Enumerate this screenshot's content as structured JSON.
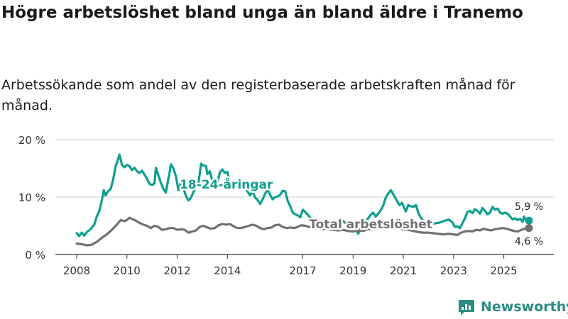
{
  "title": "Högre arbetslöshet bland unga än bland äldre i Tranemo",
  "subtitle": "Arbetssökande som andel av den registerbaserade arbetskraften månad för månad.",
  "brand": {
    "name": "Newsworthy",
    "icon": "newsworthy-logo-icon"
  },
  "colors": {
    "youth": "#0f9e8f",
    "total": "#707070",
    "grid": "#cccccc",
    "axis": "#333333"
  },
  "chart_data": {
    "type": "line",
    "title": "Högre arbetslöshet bland unga än bland äldre i Tranemo",
    "subtitle": "Arbetssökande som andel av den registerbaserade arbetskraften månad för månad.",
    "xlabel": "",
    "ylabel": "",
    "xlim": [
      2008.0,
      2026.0
    ],
    "ylim": [
      0,
      20
    ],
    "grid": true,
    "y_ticks": [
      0,
      10,
      20
    ],
    "y_tick_labels": [
      "0 %",
      "10 %",
      "20 %"
    ],
    "x_ticks": [
      2008,
      2010,
      2012,
      2014,
      2017,
      2019,
      2021,
      2023,
      2025
    ],
    "x_tick_labels": [
      "2008",
      "2010",
      "2012",
      "2014",
      "2017",
      "2019",
      "2021",
      "2023",
      "2025"
    ],
    "series": [
      {
        "name": "18-24-åringar",
        "label": "18-24-åringar",
        "end_label": "5,9 %",
        "points": [
          [
            2008.0,
            3.7
          ],
          [
            2008.1,
            3.2
          ],
          [
            2008.2,
            3.8
          ],
          [
            2008.3,
            3.3
          ],
          [
            2008.4,
            3.9
          ],
          [
            2008.55,
            4.4
          ],
          [
            2008.7,
            5.2
          ],
          [
            2008.8,
            6.6
          ],
          [
            2008.9,
            7.6
          ],
          [
            2009.0,
            9.4
          ],
          [
            2009.08,
            11.2
          ],
          [
            2009.15,
            10.3
          ],
          [
            2009.25,
            11.0
          ],
          [
            2009.35,
            11.4
          ],
          [
            2009.45,
            13.0
          ],
          [
            2009.55,
            15.4
          ],
          [
            2009.62,
            16.2
          ],
          [
            2009.7,
            17.4
          ],
          [
            2009.75,
            16.6
          ],
          [
            2009.8,
            15.6
          ],
          [
            2009.9,
            15.2
          ],
          [
            2010.0,
            15.6
          ],
          [
            2010.1,
            15.4
          ],
          [
            2010.2,
            14.7
          ],
          [
            2010.3,
            15.1
          ],
          [
            2010.4,
            14.5
          ],
          [
            2010.5,
            14.2
          ],
          [
            2010.6,
            14.6
          ],
          [
            2010.7,
            13.9
          ],
          [
            2010.8,
            13.2
          ],
          [
            2010.9,
            12.3
          ],
          [
            2011.0,
            12.1
          ],
          [
            2011.1,
            12.4
          ],
          [
            2011.15,
            15.1
          ],
          [
            2011.25,
            13.8
          ],
          [
            2011.35,
            12.5
          ],
          [
            2011.45,
            11.4
          ],
          [
            2011.55,
            10.8
          ],
          [
            2011.6,
            12.0
          ],
          [
            2011.7,
            14.3
          ],
          [
            2011.75,
            15.7
          ],
          [
            2011.85,
            15.0
          ],
          [
            2011.95,
            13.6
          ],
          [
            2012.05,
            11.2
          ],
          [
            2012.15,
            12.5
          ],
          [
            2012.25,
            11.5
          ],
          [
            2012.35,
            10.2
          ],
          [
            2012.45,
            9.4
          ],
          [
            2012.55,
            9.9
          ],
          [
            2012.65,
            10.9
          ],
          [
            2012.75,
            11.9
          ],
          [
            2012.85,
            12.5
          ],
          [
            2012.95,
            15.8
          ],
          [
            2013.05,
            15.5
          ],
          [
            2013.15,
            15.4
          ],
          [
            2013.2,
            14.0
          ],
          [
            2013.3,
            14.5
          ],
          [
            2013.4,
            12.8
          ],
          [
            2013.5,
            12.4
          ],
          [
            2013.6,
            12.6
          ],
          [
            2013.7,
            14.3
          ],
          [
            2013.8,
            14.8
          ],
          [
            2013.9,
            14.2
          ],
          [
            2014.0,
            14.4
          ],
          [
            2014.1,
            12.5
          ],
          [
            2014.3,
            11.9
          ],
          [
            2014.5,
            12.3
          ],
          [
            2014.7,
            11.6
          ],
          [
            2014.9,
            10.3
          ],
          [
            2015.0,
            11.1
          ],
          [
            2015.1,
            9.9
          ],
          [
            2015.2,
            9.5
          ],
          [
            2015.3,
            8.8
          ],
          [
            2015.4,
            9.6
          ],
          [
            2015.5,
            10.6
          ],
          [
            2015.6,
            11.3
          ],
          [
            2015.7,
            10.4
          ],
          [
            2015.8,
            9.6
          ],
          [
            2015.9,
            10.0
          ],
          [
            2016.0,
            10.1
          ],
          [
            2016.1,
            10.4
          ],
          [
            2016.2,
            11.1
          ],
          [
            2016.3,
            11.0
          ],
          [
            2016.4,
            9.3
          ],
          [
            2016.5,
            8.4
          ],
          [
            2016.6,
            7.3
          ],
          [
            2016.7,
            7.0
          ],
          [
            2016.8,
            6.8
          ],
          [
            2016.9,
            6.5
          ],
          [
            2017.0,
            7.8
          ],
          [
            2017.1,
            7.4
          ],
          [
            2017.2,
            6.9
          ],
          [
            2017.3,
            6.4
          ],
          [
            2017.4,
            6.0
          ],
          [
            2017.5,
            6.1
          ],
          [
            2017.6,
            5.8
          ],
          [
            2017.8,
            5.6
          ],
          [
            2018.0,
            5.3
          ],
          [
            2018.2,
            5.8
          ],
          [
            2018.4,
            5.4
          ],
          [
            2018.6,
            5.8
          ],
          [
            2018.8,
            5.2
          ],
          [
            2019.0,
            4.5
          ],
          [
            2019.1,
            4.7
          ],
          [
            2019.2,
            3.6
          ],
          [
            2019.3,
            4.6
          ],
          [
            2019.4,
            5.4
          ],
          [
            2019.5,
            5.7
          ],
          [
            2019.6,
            6.3
          ],
          [
            2019.7,
            6.9
          ],
          [
            2019.8,
            7.3
          ],
          [
            2019.9,
            6.6
          ],
          [
            2020.0,
            7.1
          ],
          [
            2020.1,
            7.7
          ],
          [
            2020.2,
            8.5
          ],
          [
            2020.3,
            9.9
          ],
          [
            2020.4,
            10.6
          ],
          [
            2020.5,
            11.2
          ],
          [
            2020.55,
            10.9
          ],
          [
            2020.65,
            10.1
          ],
          [
            2020.75,
            9.3
          ],
          [
            2020.85,
            8.6
          ],
          [
            2020.95,
            9.0
          ],
          [
            2021.05,
            8.0
          ],
          [
            2021.1,
            7.5
          ],
          [
            2021.2,
            8.6
          ],
          [
            2021.3,
            8.4
          ],
          [
            2021.4,
            8.3
          ],
          [
            2021.5,
            8.6
          ],
          [
            2021.6,
            7.2
          ],
          [
            2021.7,
            6.4
          ],
          [
            2021.8,
            5.8
          ],
          [
            2022.0,
            5.8
          ],
          [
            2022.2,
            5.4
          ],
          [
            2022.4,
            5.5
          ],
          [
            2022.6,
            5.8
          ],
          [
            2022.8,
            6.1
          ],
          [
            2022.95,
            5.6
          ],
          [
            2023.05,
            4.8
          ],
          [
            2023.15,
            4.9
          ],
          [
            2023.25,
            4.6
          ],
          [
            2023.35,
            5.4
          ],
          [
            2023.45,
            6.3
          ],
          [
            2023.55,
            7.4
          ],
          [
            2023.65,
            7.6
          ],
          [
            2023.75,
            7.2
          ],
          [
            2023.85,
            7.9
          ],
          [
            2023.95,
            7.6
          ],
          [
            2024.05,
            7.1
          ],
          [
            2024.15,
            8.1
          ],
          [
            2024.25,
            7.6
          ],
          [
            2024.35,
            7.0
          ],
          [
            2024.45,
            7.3
          ],
          [
            2024.55,
            8.3
          ],
          [
            2024.65,
            7.8
          ],
          [
            2024.75,
            8.0
          ],
          [
            2024.85,
            7.3
          ],
          [
            2024.95,
            7.1
          ],
          [
            2025.05,
            7.3
          ],
          [
            2025.15,
            7.1
          ],
          [
            2025.25,
            6.6
          ],
          [
            2025.35,
            6.1
          ],
          [
            2025.45,
            6.3
          ],
          [
            2025.55,
            6.0
          ],
          [
            2025.65,
            6.2
          ],
          [
            2025.75,
            5.7
          ],
          [
            2025.8,
            6.6
          ],
          [
            2025.9,
            5.8
          ],
          [
            2026.0,
            5.9
          ]
        ]
      },
      {
        "name": "Total arbetslöshet",
        "label": "Total arbetslöshet",
        "end_label": "4,6 %",
        "points": [
          [
            2008.0,
            1.9
          ],
          [
            2008.2,
            1.8
          ],
          [
            2008.4,
            1.6
          ],
          [
            2008.6,
            1.7
          ],
          [
            2008.8,
            2.2
          ],
          [
            2009.0,
            2.9
          ],
          [
            2009.2,
            3.5
          ],
          [
            2009.4,
            4.3
          ],
          [
            2009.6,
            5.2
          ],
          [
            2009.75,
            6.0
          ],
          [
            2009.9,
            5.8
          ],
          [
            2010.0,
            6.0
          ],
          [
            2010.1,
            6.4
          ],
          [
            2010.2,
            6.2
          ],
          [
            2010.35,
            5.9
          ],
          [
            2010.5,
            5.5
          ],
          [
            2010.65,
            5.2
          ],
          [
            2010.8,
            5.0
          ],
          [
            2010.95,
            4.6
          ],
          [
            2011.1,
            5.0
          ],
          [
            2011.25,
            4.8
          ],
          [
            2011.4,
            4.3
          ],
          [
            2011.55,
            4.4
          ],
          [
            2011.7,
            4.6
          ],
          [
            2011.85,
            4.6
          ],
          [
            2012.0,
            4.3
          ],
          [
            2012.15,
            4.4
          ],
          [
            2012.3,
            4.3
          ],
          [
            2012.45,
            3.8
          ],
          [
            2012.6,
            4.0
          ],
          [
            2012.75,
            4.2
          ],
          [
            2012.9,
            4.8
          ],
          [
            2013.05,
            5.0
          ],
          [
            2013.2,
            4.7
          ],
          [
            2013.35,
            4.5
          ],
          [
            2013.5,
            4.6
          ],
          [
            2013.65,
            5.1
          ],
          [
            2013.8,
            5.3
          ],
          [
            2013.95,
            5.2
          ],
          [
            2014.1,
            5.3
          ],
          [
            2014.25,
            4.9
          ],
          [
            2014.4,
            4.6
          ],
          [
            2014.55,
            4.6
          ],
          [
            2014.7,
            4.8
          ],
          [
            2014.85,
            5.0
          ],
          [
            2015.0,
            5.2
          ],
          [
            2015.15,
            5.0
          ],
          [
            2015.3,
            4.6
          ],
          [
            2015.45,
            4.4
          ],
          [
            2015.6,
            4.6
          ],
          [
            2015.75,
            4.7
          ],
          [
            2015.9,
            5.1
          ],
          [
            2016.05,
            5.2
          ],
          [
            2016.2,
            4.8
          ],
          [
            2016.35,
            4.6
          ],
          [
            2016.5,
            4.7
          ],
          [
            2016.65,
            4.6
          ],
          [
            2016.8,
            4.8
          ],
          [
            2016.95,
            5.1
          ],
          [
            2017.1,
            5.0
          ],
          [
            2017.25,
            4.8
          ],
          [
            2017.4,
            4.6
          ],
          [
            2017.55,
            4.6
          ],
          [
            2017.7,
            4.4
          ],
          [
            2017.85,
            4.5
          ],
          [
            2018.0,
            4.4
          ],
          [
            2018.2,
            4.3
          ],
          [
            2018.4,
            4.2
          ],
          [
            2018.6,
            4.3
          ],
          [
            2018.8,
            4.1
          ],
          [
            2019.0,
            4.0
          ],
          [
            2019.2,
            4.2
          ],
          [
            2019.4,
            4.1
          ],
          [
            2019.6,
            4.4
          ],
          [
            2019.8,
            4.5
          ],
          [
            2020.0,
            4.6
          ],
          [
            2020.2,
            4.7
          ],
          [
            2020.4,
            4.8
          ],
          [
            2020.6,
            4.6
          ],
          [
            2020.8,
            4.5
          ],
          [
            2021.0,
            4.4
          ],
          [
            2021.2,
            4.3
          ],
          [
            2021.4,
            4.1
          ],
          [
            2021.6,
            3.9
          ],
          [
            2021.8,
            3.8
          ],
          [
            2022.0,
            3.8
          ],
          [
            2022.2,
            3.7
          ],
          [
            2022.4,
            3.6
          ],
          [
            2022.6,
            3.5
          ],
          [
            2022.8,
            3.6
          ],
          [
            2023.0,
            3.5
          ],
          [
            2023.15,
            3.4
          ],
          [
            2023.3,
            3.8
          ],
          [
            2023.45,
            4.0
          ],
          [
            2023.6,
            4.1
          ],
          [
            2023.75,
            4.0
          ],
          [
            2023.9,
            4.3
          ],
          [
            2024.05,
            4.2
          ],
          [
            2024.2,
            4.5
          ],
          [
            2024.35,
            4.3
          ],
          [
            2024.5,
            4.2
          ],
          [
            2024.65,
            4.4
          ],
          [
            2024.8,
            4.5
          ],
          [
            2024.95,
            4.6
          ],
          [
            2025.1,
            4.5
          ],
          [
            2025.25,
            4.3
          ],
          [
            2025.4,
            4.1
          ],
          [
            2025.55,
            4.0
          ],
          [
            2025.7,
            4.3
          ],
          [
            2025.85,
            4.5
          ],
          [
            2026.0,
            4.6
          ]
        ]
      }
    ]
  }
}
